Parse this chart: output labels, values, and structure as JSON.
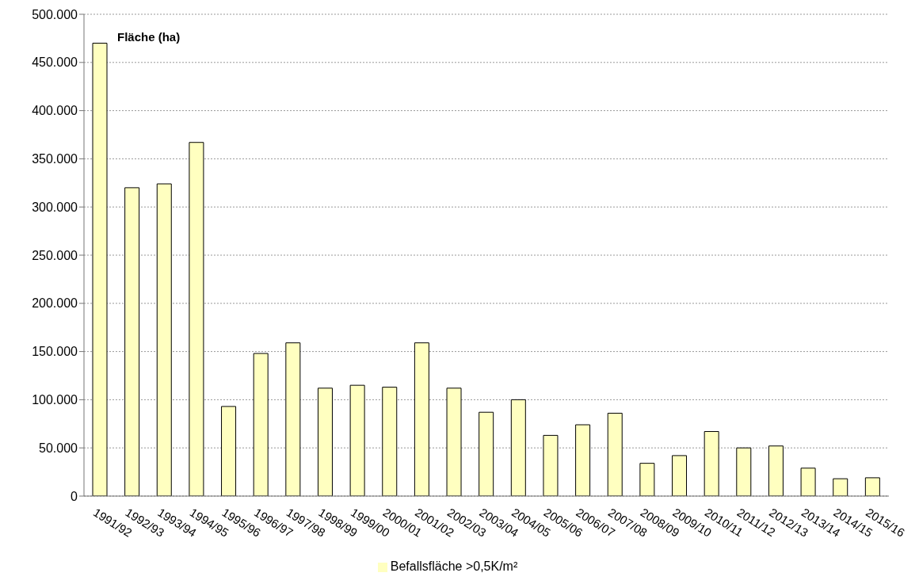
{
  "chart_data": {
    "type": "bar",
    "ylabel": "Fläche (ha)",
    "categories": [
      "1991/92",
      "1992/93",
      "1993/94",
      "1994/95",
      "1995/96",
      "1996/97",
      "1997/98",
      "1998/99",
      "1999/00",
      "2000/01",
      "2001/02",
      "2002/03",
      "2003/04",
      "2004/05",
      "2005/06",
      "2006/07",
      "2007/08",
      "2008/09",
      "2009/10",
      "2010/11",
      "2011/12",
      "2012/13",
      "2013/14",
      "2014/15",
      "2015/16"
    ],
    "series": [
      {
        "name": "Befallsfläche >0,5K/m²",
        "color": "#ffffc0",
        "values": [
          470000,
          320000,
          324000,
          367000,
          93000,
          148000,
          159000,
          112000,
          115000,
          113000,
          159000,
          112000,
          87000,
          100000,
          63000,
          74000,
          86000,
          34000,
          42000,
          67000,
          50000,
          52000,
          29000,
          18000,
          19000
        ]
      }
    ],
    "ylim": [
      0,
      500000
    ],
    "yticks": [
      0,
      {
        "value": 50000,
        "label": "50.000"
      },
      {
        "value": 100000,
        "label": "100.000"
      },
      {
        "value": 150000,
        "label": "150.000"
      },
      {
        "value": 200000,
        "label": "200.000"
      },
      {
        "value": 250000,
        "label": "250.000"
      },
      {
        "value": 300000,
        "label": "300.000"
      },
      {
        "value": 350000,
        "label": "350.000"
      },
      {
        "value": 400000,
        "label": "400.000"
      },
      {
        "value": 450000,
        "label": "450.000"
      },
      {
        "value": 500000,
        "label": "500.000"
      }
    ],
    "grid": "y",
    "legend": "bottom"
  }
}
